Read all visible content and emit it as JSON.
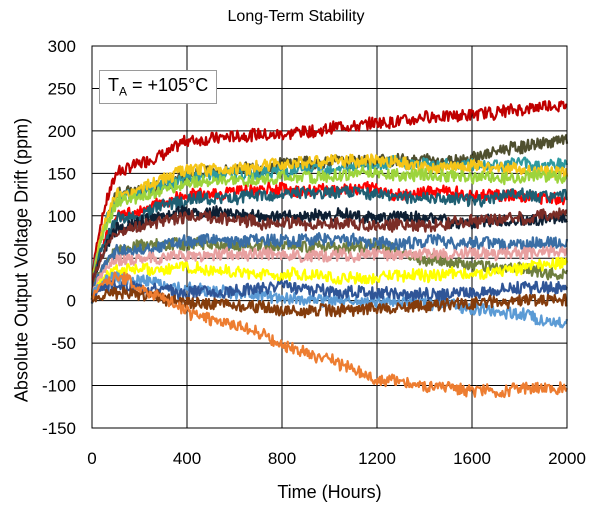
{
  "chart_data": {
    "type": "line",
    "title": "Long-Term Stability",
    "xlabel": "Time (Hours)",
    "ylabel": "Absolute Output Voltage Drift (ppm)",
    "annotation": {
      "symbol": "T",
      "subscript": "A",
      "text": " = +105°C"
    },
    "xlim": [
      0,
      2000
    ],
    "ylim": [
      -150,
      300
    ],
    "xticks": [
      0,
      400,
      800,
      1200,
      1600,
      2000
    ],
    "yticks": [
      -150,
      -100,
      -50,
      0,
      50,
      100,
      150,
      200,
      250,
      300
    ],
    "grid": true,
    "legend": "none",
    "series": [
      {
        "color": "#c00000",
        "x": [
          0,
          100,
          400,
          800,
          1200,
          1600,
          2000
        ],
        "values": [
          0,
          150,
          190,
          200,
          210,
          220,
          230
        ]
      },
      {
        "color": "#4f4f2f",
        "x": [
          0,
          100,
          400,
          800,
          1200,
          1600,
          2000
        ],
        "values": [
          0,
          120,
          150,
          160,
          165,
          170,
          190
        ]
      },
      {
        "color": "#2e9aa0",
        "x": [
          0,
          100,
          400,
          800,
          1200,
          1600,
          2000
        ],
        "values": [
          0,
          120,
          145,
          155,
          160,
          162,
          160
        ]
      },
      {
        "color": "#f5c518",
        "x": [
          0,
          100,
          400,
          800,
          1200,
          1600,
          2000
        ],
        "values": [
          0,
          125,
          155,
          160,
          165,
          160,
          150
        ]
      },
      {
        "color": "#9dd43c",
        "x": [
          0,
          100,
          400,
          800,
          1200,
          1600,
          2000
        ],
        "values": [
          0,
          115,
          140,
          145,
          148,
          148,
          145
        ]
      },
      {
        "color": "#ff0000",
        "x": [
          0,
          100,
          400,
          800,
          1200,
          1600,
          2000
        ],
        "values": [
          0,
          100,
          125,
          130,
          130,
          125,
          120
        ]
      },
      {
        "color": "#1f5f73",
        "x": [
          0,
          100,
          400,
          800,
          1200,
          1600,
          2000
        ],
        "values": [
          0,
          95,
          120,
          125,
          125,
          120,
          125
        ]
      },
      {
        "color": "#0d1f33",
        "x": [
          0,
          100,
          400,
          800,
          1200,
          1600,
          2000
        ],
        "values": [
          0,
          85,
          105,
          100,
          100,
          90,
          95
        ]
      },
      {
        "color": "#7b2d26",
        "x": [
          0,
          100,
          400,
          800,
          1200,
          1600,
          2000
        ],
        "values": [
          0,
          80,
          100,
          90,
          90,
          95,
          105
        ]
      },
      {
        "color": "#6f7f3f",
        "x": [
          0,
          100,
          400,
          800,
          1200,
          1600,
          2000
        ],
        "values": [
          0,
          60,
          70,
          65,
          65,
          40,
          30
        ]
      },
      {
        "color": "#3a6ea5",
        "x": [
          0,
          100,
          400,
          800,
          1200,
          1600,
          2000
        ],
        "values": [
          0,
          55,
          70,
          70,
          72,
          70,
          68
        ]
      },
      {
        "color": "#e8a0a0",
        "x": [
          0,
          100,
          400,
          800,
          1200,
          1600,
          2000
        ],
        "values": [
          0,
          45,
          55,
          55,
          55,
          55,
          55
        ]
      },
      {
        "color": "#ffff00",
        "x": [
          0,
          100,
          400,
          800,
          1200,
          1600,
          2000
        ],
        "values": [
          0,
          35,
          40,
          30,
          30,
          35,
          40
        ]
      },
      {
        "color": "#5b9bd5",
        "x": [
          0,
          100,
          400,
          800,
          1200,
          1600,
          2000
        ],
        "values": [
          0,
          30,
          15,
          5,
          0,
          -10,
          -30
        ]
      },
      {
        "color": "#2f5597",
        "x": [
          0,
          100,
          400,
          800,
          1200,
          1600,
          2000
        ],
        "values": [
          0,
          20,
          10,
          15,
          10,
          10,
          15
        ]
      },
      {
        "color": "#843c0c",
        "x": [
          0,
          100,
          400,
          800,
          1200,
          1600,
          2000
        ],
        "values": [
          0,
          10,
          0,
          -10,
          -10,
          -5,
          0
        ]
      },
      {
        "color": "#ed7d31",
        "x": [
          0,
          100,
          400,
          800,
          1200,
          1600,
          2000
        ],
        "values": [
          0,
          30,
          -10,
          -50,
          -90,
          -110,
          -100
        ]
      }
    ]
  }
}
